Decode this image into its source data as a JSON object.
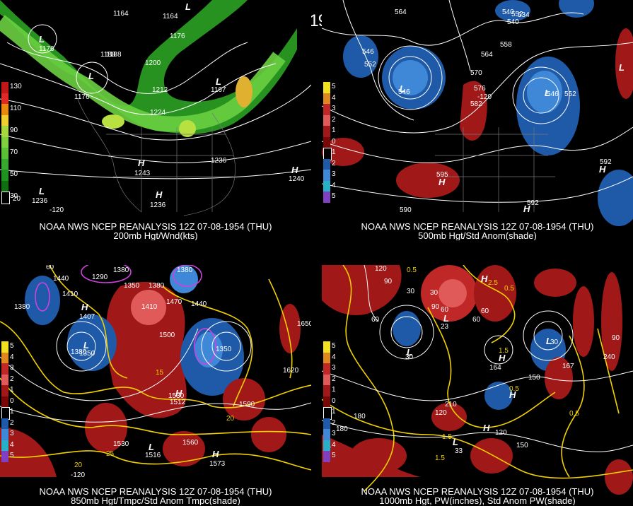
{
  "title": "12Z 07-08-1954 (THU)",
  "colors": {
    "background": "#000000",
    "contour": "#ffffff",
    "jet": [
      "#1a9a1a",
      "#33c02a",
      "#7fe03a",
      "#c8e03a",
      "#e8a020"
    ],
    "anom_pos": [
      "#8b0a0a",
      "#c02020",
      "#e06868",
      "#e8a0a0"
    ],
    "anom_neg": [
      "#1e5aa8",
      "#3f88d8",
      "#7ab8f0"
    ],
    "tmpc_line": "#f0d000",
    "tmpc_cold": "#d040e0"
  },
  "panels": [
    {
      "id": "200mb",
      "caption1": "NOAA NWS NCEP REANALYSIS 12Z 07-08-1954 (THU)",
      "caption2": "200mb Hgt/Wnd(kts)",
      "legend": [
        {
          "color": "#c01818",
          "label": "130"
        },
        {
          "color": "#e02828",
          "label": ""
        },
        {
          "color": "#e88a10",
          "label": "110"
        },
        {
          "color": "#f0d030",
          "label": ""
        },
        {
          "color": "#a8d840",
          "label": "90"
        },
        {
          "color": "#7fd040",
          "label": ""
        },
        {
          "color": "#5ac038",
          "label": "70"
        },
        {
          "color": "#38a830",
          "label": ""
        },
        {
          "color": "#209020",
          "label": "50"
        },
        {
          "color": "#107010",
          "label": ""
        },
        {
          "color": "#000000",
          "label": "30"
        }
      ],
      "labels": [
        "1164",
        "1164",
        "L",
        "1188",
        "1176",
        "L",
        "1176",
        "1188",
        "1200",
        "L",
        "1212",
        "1176",
        "L",
        "1167",
        "1224",
        "H",
        "1243",
        "1236",
        "L",
        "1236",
        "H",
        "1236",
        "H",
        "1240",
        "20",
        "-120"
      ]
    },
    {
      "id": "500mb",
      "caption1": "NOAA NWS NCEP REANALYSIS 12Z 07-08-1954 (THU)",
      "caption2": "500mb Hgt/Std Anom(shade)",
      "legend": [
        {
          "color": "#f0e020",
          "label": "5"
        },
        {
          "color": "#e08820",
          "label": "4"
        },
        {
          "color": "#c02828",
          "label": "3"
        },
        {
          "color": "#e05a5a",
          "label": "2"
        },
        {
          "color": "#a01818",
          "label": "1"
        },
        {
          "color": "#780808",
          "label": "0"
        },
        {
          "color": "#000000",
          "label": "1"
        },
        {
          "color": "#1e5aa8",
          "label": "2"
        },
        {
          "color": "#3f88d8",
          "label": "3"
        },
        {
          "color": "#28b0c8",
          "label": "4"
        },
        {
          "color": "#8040c0",
          "label": "5"
        }
      ],
      "labels": [
        "564",
        "540",
        "534",
        "540",
        "552",
        "558",
        "546",
        "552",
        "564",
        "570",
        "L",
        "546",
        "L",
        "546",
        "552",
        "576",
        "582",
        "L",
        "595",
        "H",
        "592",
        "H",
        "592",
        "H",
        "590",
        "-120"
      ]
    },
    {
      "id": "850mb",
      "caption1": "NOAA NWS NCEP REANALYSIS 12Z 07-08-1954 (THU)",
      "caption2": "850mb Hgt/Tmpc/Std Anom Tmpc(shade)",
      "legend": [
        {
          "color": "#f0e020",
          "label": "5"
        },
        {
          "color": "#e08820",
          "label": "4"
        },
        {
          "color": "#c02828",
          "label": "3"
        },
        {
          "color": "#e05a5a",
          "label": "2"
        },
        {
          "color": "#a01818",
          "label": "1"
        },
        {
          "color": "#780808",
          "label": "0"
        },
        {
          "color": "#000000",
          "label": "1"
        },
        {
          "color": "#1e5aa8",
          "label": "2"
        },
        {
          "color": "#3f88d8",
          "label": "3"
        },
        {
          "color": "#28b0c8",
          "label": "4"
        },
        {
          "color": "#8040c0",
          "label": "5"
        }
      ],
      "labels": [
        "60",
        "1380",
        "1290",
        "1350",
        "1380",
        "1380",
        "1440",
        "1410",
        "1470",
        "1410",
        "1440",
        "1380",
        "H",
        "1407",
        "1500",
        "1650",
        "1380",
        "L",
        "1350",
        "1350",
        "1530",
        "1620",
        "15",
        "H",
        "1512",
        "1590",
        "20",
        "1530",
        "1560",
        "L",
        "1516",
        "H",
        "1573",
        "20",
        "25",
        "-120"
      ]
    },
    {
      "id": "1000mb",
      "caption1": "NOAA NWS NCEP REANALYSIS 12Z 07-08-1954 (THU)",
      "caption2": "1000mb Hgt, PW(inches), Std Anom PW(shade)",
      "legend": [
        {
          "color": "#f0e020",
          "label": "5"
        },
        {
          "color": "#e08820",
          "label": "4"
        },
        {
          "color": "#c02828",
          "label": "3"
        },
        {
          "color": "#e05a5a",
          "label": "2"
        },
        {
          "color": "#a01818",
          "label": "1"
        },
        {
          "color": "#780808",
          "label": "0"
        },
        {
          "color": "#000000",
          "label": "1"
        },
        {
          "color": "#1e5aa8",
          "label": "2"
        },
        {
          "color": "#3f88d8",
          "label": "3"
        },
        {
          "color": "#28b0c8",
          "label": "4"
        },
        {
          "color": "#8040c0",
          "label": "5"
        }
      ],
      "labels": [
        "120",
        "90",
        "0.5",
        "60",
        "30",
        "H",
        "2.5",
        "0.5",
        "60",
        "30",
        "90",
        "60",
        "L",
        "23",
        "60",
        "L",
        "30",
        "L",
        "30",
        "90",
        "240",
        "1.5",
        "H",
        "164",
        "150",
        "0.5",
        "H",
        "167",
        "210",
        "120",
        "0.5",
        "180",
        "H",
        "120",
        "1.5",
        "150",
        "L",
        "33",
        "180",
        "1.5",
        "1"
      ]
    }
  ]
}
